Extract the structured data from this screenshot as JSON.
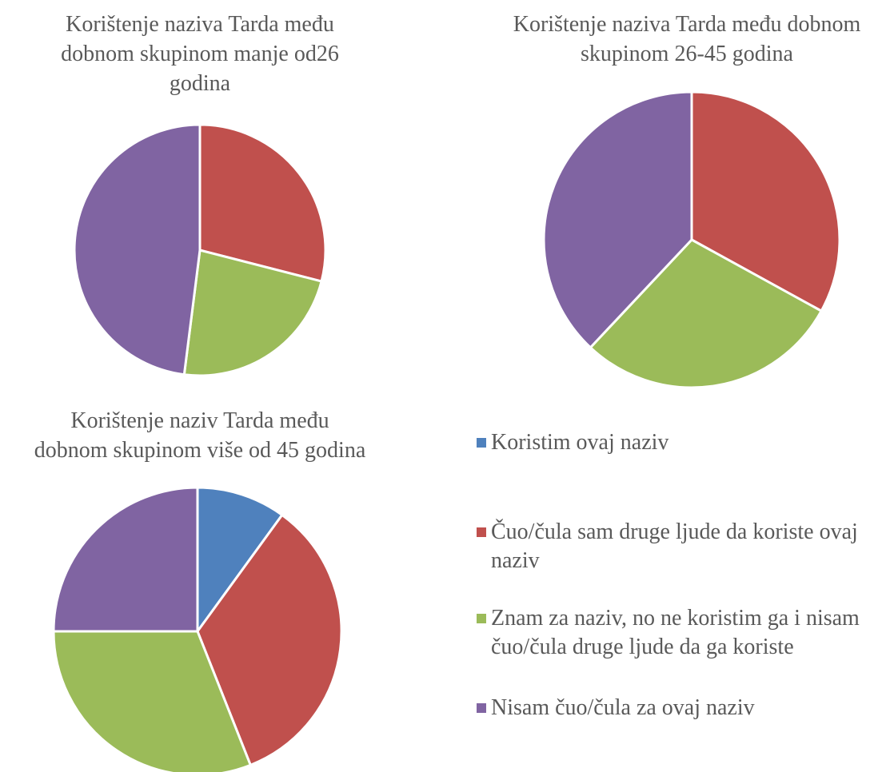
{
  "chart_data": [
    {
      "type": "pie",
      "title": [
        "Korištenje naziva Tarda među",
        "dobnom skupinom manje od26",
        "godina"
      ],
      "values": [
        0,
        29,
        23,
        48
      ]
    },
    {
      "type": "pie",
      "title": [
        "Korištenje naziva Tarda među dobnom",
        "skupinom 26-45 godina"
      ],
      "values": [
        0,
        33,
        29,
        38
      ]
    },
    {
      "type": "pie",
      "title": [
        "Korištenje naziv Tarda među",
        "dobnom skupinom više od 45 godina"
      ],
      "values": [
        10,
        34,
        31,
        25
      ]
    }
  ],
  "legend": {
    "categories": [
      "Koristim ovaj naziv",
      "Čuo/čula sam druge ljude da koriste ovaj naziv",
      "Znam za naziv, no ne koristim ga i nisam čuo/čula druge ljude da ga koriste",
      "Nisam čuo/čula za ovaj naziv"
    ],
    "colors": [
      "#4f81bd",
      "#c0504d",
      "#9bbb59",
      "#8064a2"
    ]
  }
}
